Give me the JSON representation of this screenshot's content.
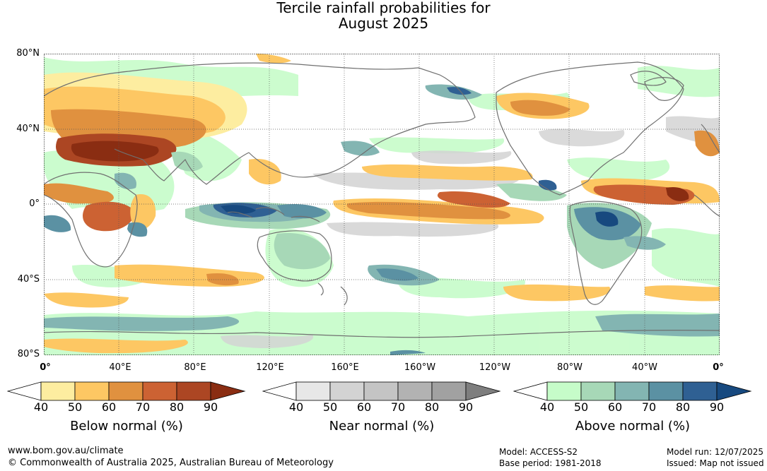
{
  "title": {
    "line1": "Tercile rainfall probabilities for",
    "line2": "August 2025"
  },
  "lat_ticks": [
    "80°N",
    "40°N",
    "0°",
    "40°S",
    "80°S"
  ],
  "lon_ticks": [
    "0°",
    "40°E",
    "80°E",
    "120°E",
    "160°E",
    "160°W",
    "120°W",
    "80°W",
    "40°W",
    "0°"
  ],
  "colorbars": [
    {
      "title": "Below normal (%)",
      "labels": [
        "40",
        "50",
        "60",
        "70",
        "80",
        "90"
      ],
      "colors": [
        "#ffffff",
        "#fdeda0",
        "#fdc763",
        "#e0913f",
        "#cc6233",
        "#ac4623",
        "#8a2d12"
      ]
    },
    {
      "title": "Near normal (%)",
      "labels": [
        "40",
        "50",
        "60",
        "70",
        "80",
        "90"
      ],
      "colors": [
        "#ffffff",
        "#e7e7e7",
        "#d3d3d3",
        "#c4c4c4",
        "#b2b2b2",
        "#a1a1a1",
        "#7e7e7e"
      ]
    },
    {
      "title": "Above normal (%)",
      "labels": [
        "40",
        "50",
        "60",
        "70",
        "80",
        "90"
      ],
      "colors": [
        "#ffffff",
        "#c6fcc9",
        "#a7d8b7",
        "#83b5b2",
        "#5b91a3",
        "#2f6093",
        "#17497f"
      ]
    }
  ],
  "footer": {
    "website": "www.bom.gov.au/climate",
    "copyright": "© Commonwealth of Australia 2025, Australian Bureau of Meteorology",
    "model": "Model: ACCESS-S2",
    "base_period": "Base period: 1981-2018",
    "model_run": "Model run: 12/07/2025",
    "issued": "Issued: Map not issued"
  }
}
